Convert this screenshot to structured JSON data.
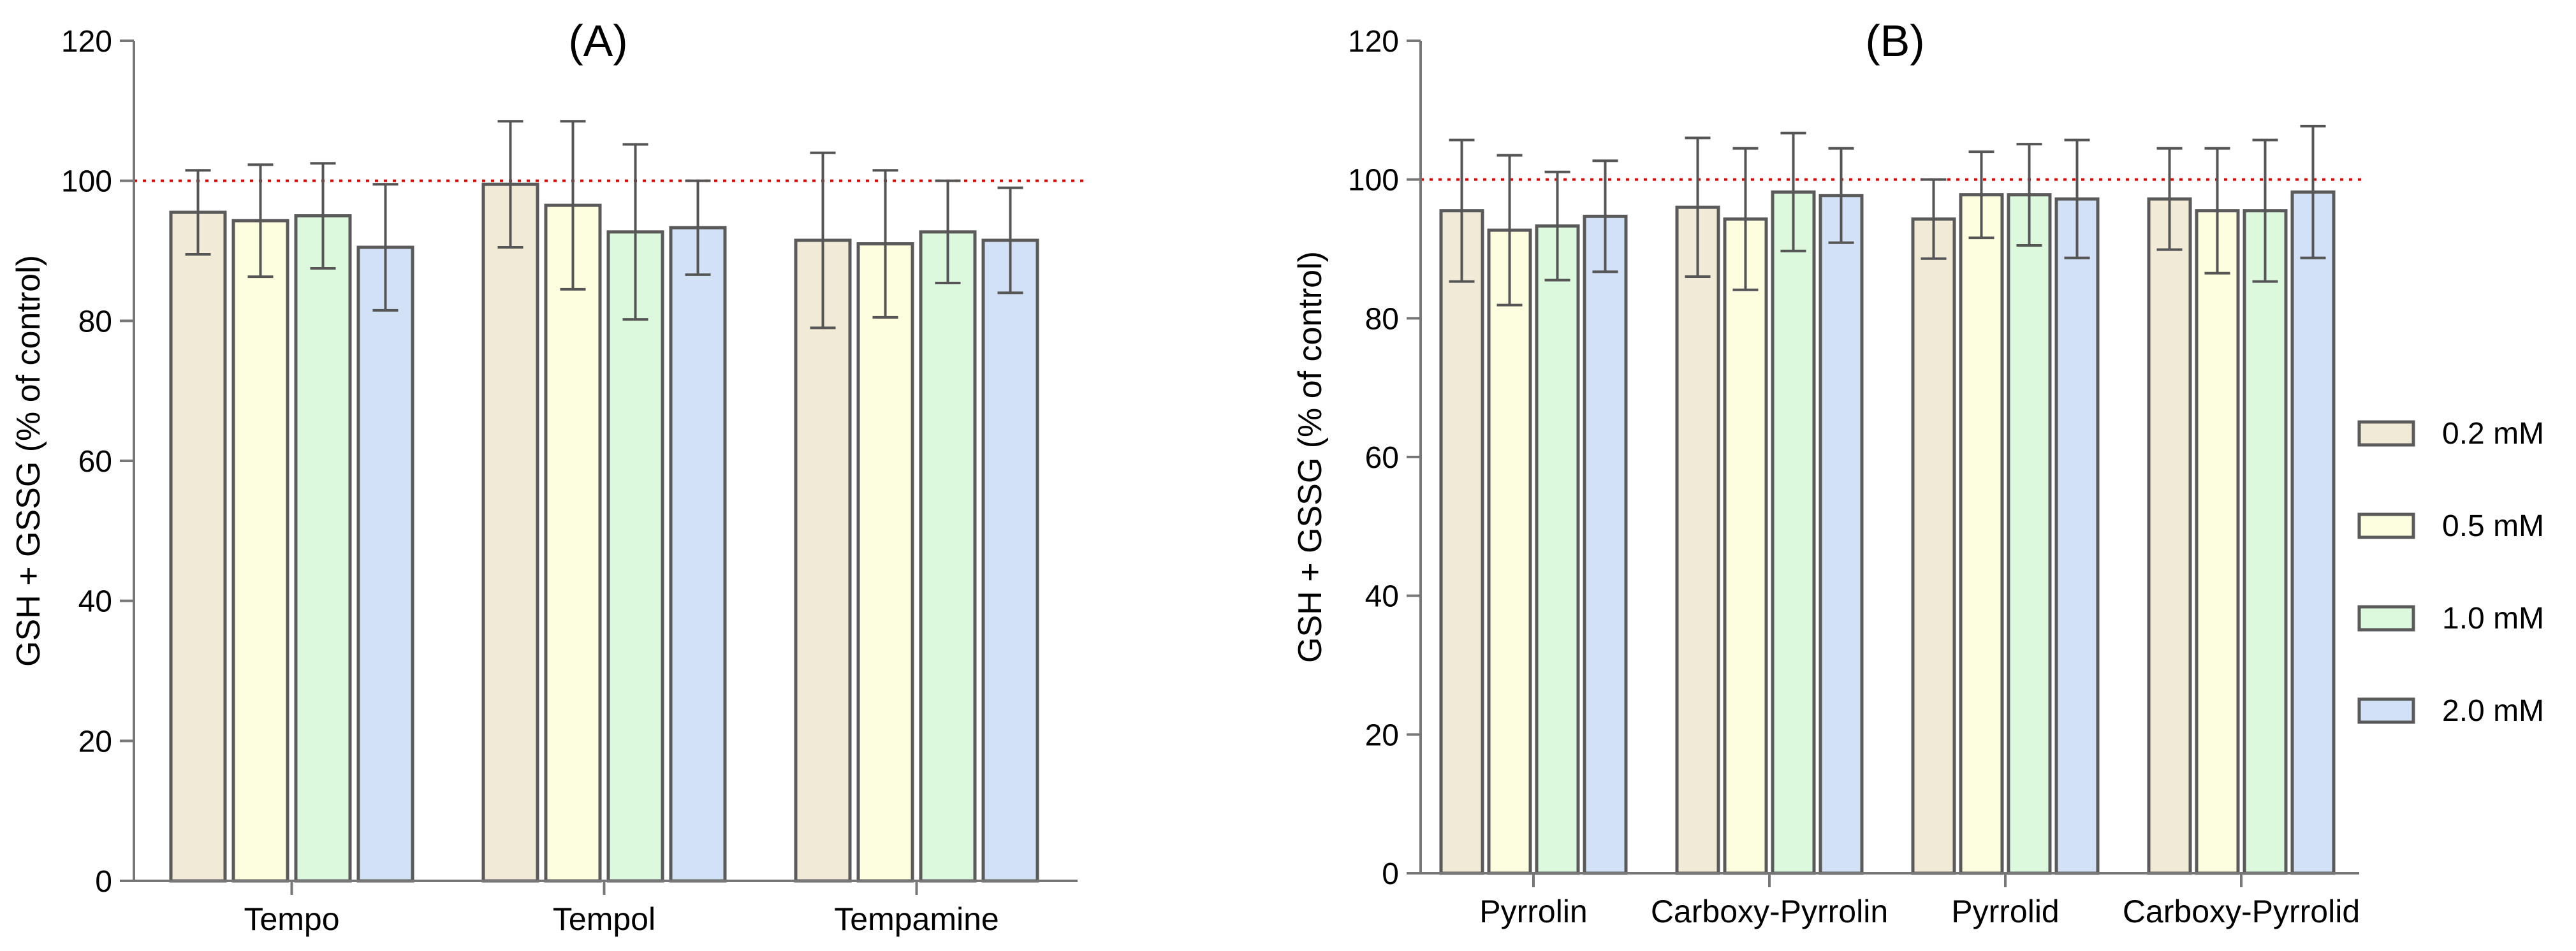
{
  "legend": {
    "items": [
      {
        "label": "0.2 mM",
        "color": "#f0ead7"
      },
      {
        "label": "0.5 mM",
        "color": "#fdfddf"
      },
      {
        "label": "1.0 mM",
        "color": "#dcf9dd"
      },
      {
        "label": "2.0 mM",
        "color": "#d3e1f6"
      }
    ]
  },
  "chart_data": [
    {
      "type": "bar",
      "title": "(A)",
      "xlabel": "",
      "ylabel": "GSH + GSSG  (% of control)",
      "ylim": [
        0,
        120
      ],
      "yticks": [
        0,
        20,
        40,
        60,
        80,
        100,
        120
      ],
      "reference_line": 100,
      "categories": [
        "Tempo",
        "Tempol",
        "Tempamine"
      ],
      "series": [
        {
          "name": "0.2 mM",
          "values": [
            95.5,
            99.5,
            91.5
          ],
          "errors": [
            6.0,
            9.0,
            12.5
          ]
        },
        {
          "name": "0.5 mM",
          "values": [
            94.3,
            96.5,
            91.0
          ],
          "errors": [
            8.0,
            12.0,
            10.5
          ]
        },
        {
          "name": "1.0 mM",
          "values": [
            95.0,
            92.7,
            92.7
          ],
          "errors": [
            7.5,
            12.5,
            7.3
          ]
        },
        {
          "name": "2.0 mM",
          "values": [
            90.5,
            93.3,
            91.5
          ],
          "errors": [
            9.0,
            6.7,
            7.5
          ]
        }
      ]
    },
    {
      "type": "bar",
      "title": "(B)",
      "xlabel": "",
      "ylabel": "GSH + GSSG  (% of control)",
      "ylim": [
        0,
        120
      ],
      "yticks": [
        0,
        20,
        40,
        60,
        80,
        100,
        120
      ],
      "reference_line": 100,
      "categories": [
        "Pyrrolin",
        "Carboxy-Pyrrolin",
        "Pyrrolid",
        "Carboxy-Pyrrolid"
      ],
      "series": [
        {
          "name": "0.2 mM",
          "values": [
            95.5,
            96.0,
            94.3,
            97.2
          ],
          "errors": [
            10.2,
            10.0,
            5.7,
            7.3
          ]
        },
        {
          "name": "0.5 mM",
          "values": [
            92.7,
            94.3,
            97.8,
            95.5
          ],
          "errors": [
            10.8,
            10.2,
            6.2,
            9.0
          ]
        },
        {
          "name": "1.0 mM",
          "values": [
            93.3,
            98.2,
            97.8,
            95.5
          ],
          "errors": [
            7.8,
            8.5,
            7.3,
            10.2
          ]
        },
        {
          "name": "2.0 mM",
          "values": [
            94.7,
            97.7,
            97.2,
            98.2
          ],
          "errors": [
            8.0,
            6.8,
            8.5,
            9.5
          ]
        }
      ]
    }
  ]
}
